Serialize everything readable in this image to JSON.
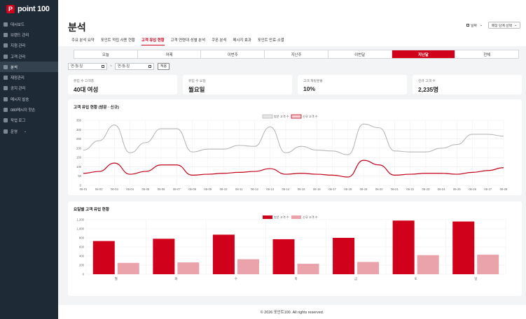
{
  "app": {
    "logo_mark": "P",
    "logo_text": "point 100"
  },
  "sidebar": {
    "items": [
      {
        "label": "대시보드",
        "icon": "dashboard-icon"
      },
      {
        "label": "브랜드 관리",
        "icon": "brand-icon"
      },
      {
        "label": "지점 관리",
        "icon": "store-icon"
      },
      {
        "label": "고객 관리",
        "icon": "users-icon"
      },
      {
        "label": "분석",
        "icon": "analytics-icon",
        "active": true
      },
      {
        "label": "재정관리",
        "icon": "finance-icon"
      },
      {
        "label": "공지 관리",
        "icon": "notice-icon"
      },
      {
        "label": "메시지 발송",
        "icon": "message-icon"
      },
      {
        "label": "080메시지 핫손",
        "icon": "phone-icon"
      },
      {
        "label": "작업 로그",
        "icon": "log-icon"
      },
      {
        "label": "운영",
        "icon": "gear-icon",
        "chevron": "⌄"
      }
    ]
  },
  "header": {
    "title": "분석",
    "date_label": "날짜",
    "date_chev": "⌄",
    "dropdown_label": "매장 단계 선택",
    "dropdown_chev": "⌄"
  },
  "tabs": [
    "주요 분석 요약",
    "포인트 적립 사용 현황",
    "고객 유입 현황",
    "고객 연령대·성별 분석",
    "쿠폰 분석",
    "메시지 효과",
    "포인트 만료·소멸"
  ],
  "period_buttons": [
    "오늘",
    "어제",
    "이번주",
    "지난주",
    "이번달",
    "지난달",
    "전체"
  ],
  "period_active_index": 5,
  "filters": {
    "start_placeholder": "연-월-일",
    "end_placeholder": "연-월-일",
    "tilde": "~",
    "apply_label": "적용",
    "calendar_icon": "calendar-icon"
  },
  "cards": [
    {
      "label": "유입 수 고객층",
      "value": "40대 여성"
    },
    {
      "label": "유입 수 요일",
      "value": "월요일"
    },
    {
      "label": "고객 재방문율",
      "value": "10%"
    },
    {
      "label": "신규 고객 수",
      "value": "2,235명"
    }
  ],
  "line_chart": {
    "title": "고객 유입 현황 (방문 · 신규)"
  },
  "bar_chart": {
    "title": "요일별 고객 유입 현황"
  },
  "footer": {
    "text": "© 2026 포인트100. All rights reserved."
  },
  "colors": {
    "brand": "#d0021b",
    "visit_line": "#b8b8b8",
    "new_line": "#c00018",
    "bar_visit": "#d0021b",
    "bar_new": "#eba3ab"
  },
  "chart_data": [
    {
      "type": "line",
      "title": "고객 유입 현황 (방문 · 신규)",
      "x": [
        "06-01",
        "06-02",
        "06-03",
        "06-04",
        "06-05",
        "06-06",
        "06-07",
        "06-08",
        "06-09",
        "06-10",
        "06-11",
        "06-12",
        "06-13",
        "06-14",
        "06-15",
        "06-16",
        "06-17",
        "06-18",
        "06-19",
        "06-20",
        "06-21",
        "06-22",
        "06-23",
        "06-24",
        "06-25",
        "06-26",
        "06-27",
        "06-28"
      ],
      "series": [
        {
          "name": "방문 고객 수",
          "values": [
            190,
            240,
            325,
            175,
            230,
            305,
            305,
            180,
            195,
            195,
            215,
            210,
            315,
            175,
            210,
            190,
            185,
            165,
            330,
            310,
            185,
            180,
            180,
            200,
            220,
            275,
            275,
            265
          ]
        },
        {
          "name": "신규 고객 수",
          "values": [
            65,
            75,
            120,
            60,
            75,
            110,
            110,
            55,
            60,
            65,
            70,
            75,
            90,
            60,
            65,
            60,
            55,
            45,
            135,
            110,
            55,
            60,
            65,
            65,
            60,
            70,
            80,
            95
          ]
        }
      ],
      "ylim": [
        0,
        350
      ],
      "yticks": [
        0,
        50,
        100,
        150,
        200,
        250,
        300,
        350
      ],
      "grid": true,
      "legend": "top-center"
    },
    {
      "type": "bar",
      "title": "요일별 고객 유입 현황",
      "categories": [
        "월",
        "화",
        "수",
        "목",
        "금",
        "토",
        "일"
      ],
      "series": [
        {
          "name": "방문 고객 수",
          "values": [
            730,
            780,
            870,
            770,
            800,
            1180,
            1160
          ]
        },
        {
          "name": "신규 고객 수",
          "values": [
            250,
            260,
            330,
            230,
            270,
            420,
            430
          ]
        }
      ],
      "ylim": [
        0,
        1200
      ],
      "yticks": [
        0,
        200,
        400,
        600,
        800,
        1000,
        1200
      ],
      "ytick_labels": [
        "0",
        "200",
        "400",
        "600",
        "800",
        "1,000",
        "1,200"
      ],
      "grid": true,
      "legend": "top-center"
    }
  ]
}
